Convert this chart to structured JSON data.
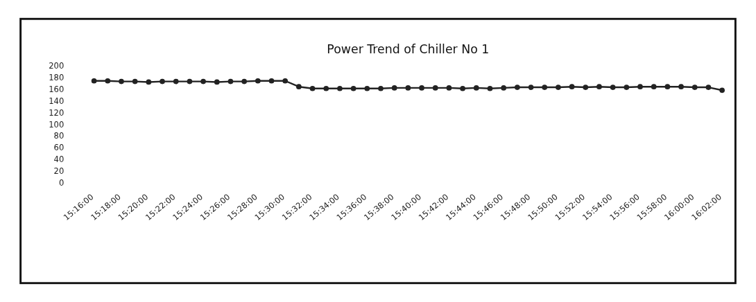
{
  "chart_data": {
    "type": "line",
    "title": "Power Trend of Chiller No 1",
    "categories": [
      "15:16:00",
      null,
      "15:18:00",
      null,
      "15:20:00",
      null,
      "15:22:00",
      null,
      "15:24:00",
      null,
      "15:26:00",
      null,
      "15:28:00",
      null,
      "15:30:00",
      null,
      "15:32:00",
      null,
      "15:34:00",
      null,
      "15:36:00",
      null,
      "15:38:00",
      null,
      "15:40:00",
      null,
      "15:42:00",
      null,
      "15:44:00",
      null,
      "15:46:00",
      null,
      "15:48:00",
      null,
      "15:50:00",
      null,
      "15:52:00",
      null,
      "15:54:00",
      null,
      "15:56:00",
      null,
      "15:58:00",
      null,
      "16:00:00",
      null,
      "16:02:00"
    ],
    "series": [
      {
        "color": "#222222",
        "values": [
          174,
          174,
          173,
          173,
          172,
          173,
          173,
          173,
          173,
          172,
          173,
          173,
          174,
          174,
          174,
          164,
          161,
          161,
          161,
          161,
          161,
          161,
          162,
          162,
          162,
          162,
          162,
          161,
          162,
          161,
          162,
          163,
          163,
          163,
          163,
          164,
          163,
          164,
          163,
          163,
          164,
          164,
          164,
          164,
          163,
          163,
          158
        ]
      }
    ],
    "ylim": [
      0,
      200
    ],
    "yticks": [
      0,
      20,
      40,
      60,
      80,
      100,
      120,
      140,
      160,
      180,
      200
    ],
    "marker": "circle",
    "line_style": "solid"
  }
}
